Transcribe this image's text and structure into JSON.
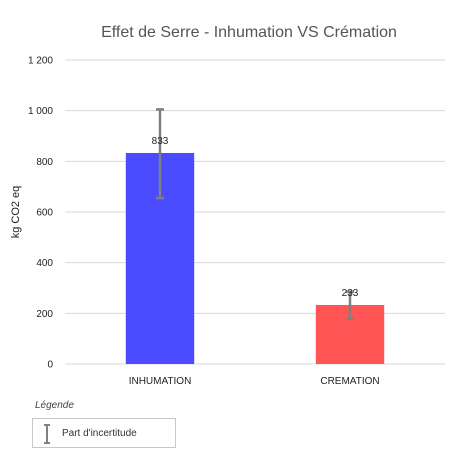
{
  "chart_data": {
    "type": "bar",
    "title": "Effet de Serre - Inhumation VS Crémation",
    "ylabel": "kg CO2 eq",
    "xlabel": "",
    "ylim": [
      0,
      1200
    ],
    "yticks": [
      0,
      200,
      400,
      600,
      800,
      1000,
      1200
    ],
    "ytick_labels": [
      "0",
      "200",
      "400",
      "600",
      "800",
      "1 000",
      "1 200"
    ],
    "categories": [
      "INHUMATION",
      "CREMATION"
    ],
    "values": [
      833,
      233
    ],
    "data_labels": [
      "833",
      "233"
    ],
    "error_low": [
      655,
      178
    ],
    "error_high": [
      1005,
      285
    ],
    "colors": [
      "#4b4bff",
      "#ff5555"
    ],
    "error_color": "#808080",
    "grid": true,
    "grid_color": "#d9d9d9",
    "legend": {
      "title": "Légende",
      "label": "Part d'incertitude"
    }
  }
}
